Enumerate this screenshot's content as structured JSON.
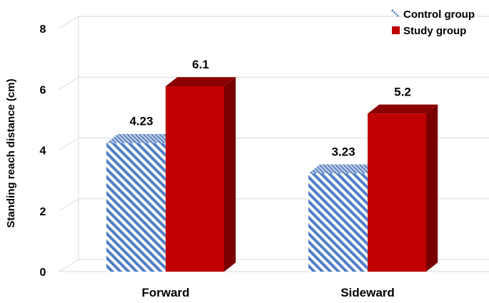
{
  "chart_data": {
    "type": "bar",
    "ylabel": "Standing reach distance (cm)",
    "xlabel": "",
    "ylim": [
      0,
      8
    ],
    "yticks": [
      0,
      2,
      4,
      6,
      8
    ],
    "grid": true,
    "legend_position": "top-right",
    "categories": [
      "Forward",
      "Sideward"
    ],
    "series": [
      {
        "name": "Control group",
        "values": [
          4.23,
          3.23
        ],
        "labels": [
          "4.23",
          "3.23"
        ],
        "color": "#4f7ec9",
        "pattern": "diagonal-stripes"
      },
      {
        "name": "Study group",
        "values": [
          6.1,
          5.2
        ],
        "labels": [
          "6.1",
          "5.2"
        ],
        "color": "#c00000",
        "pattern": "solid"
      }
    ]
  }
}
